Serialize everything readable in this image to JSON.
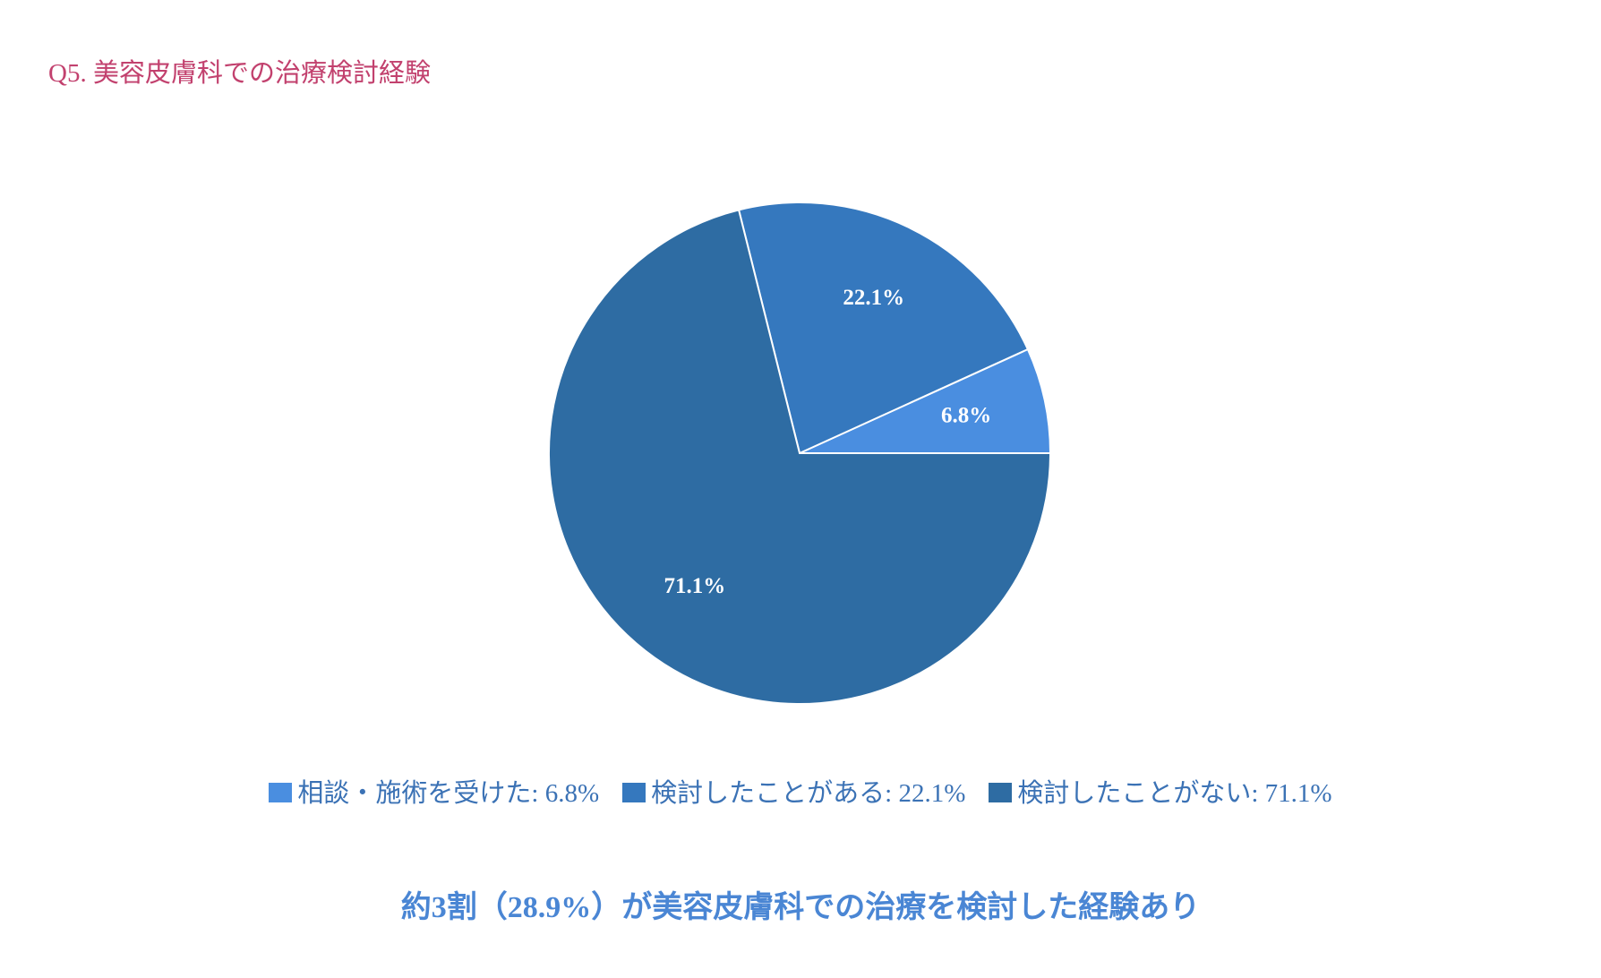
{
  "header": {
    "title": "Q5. 美容皮膚科での治療検討経験"
  },
  "chart_data": {
    "type": "pie",
    "title": "Q5. 美容皮膚科での治療検討経験",
    "slices": [
      {
        "name": "相談・施術を受けた",
        "value": 6.8,
        "label": "6.8%",
        "legend": "相談・施術を受けた: 6.8%",
        "color": "#4a8ee0"
      },
      {
        "name": "検討したことがある",
        "value": 22.1,
        "label": "22.1%",
        "legend": "検討したことがある: 22.1%",
        "color": "#3578be"
      },
      {
        "name": "検討したことがない",
        "value": 71.1,
        "label": "71.1%",
        "legend": "検討したことがない: 71.1%",
        "color": "#2e6ca3"
      }
    ],
    "start_angle_deg": 0,
    "direction": "counterclockwise",
    "legend_position": "bottom"
  },
  "footer": {
    "summary": "約3割（28.9%）が美容皮膚科での治療を検討した経験あり"
  }
}
